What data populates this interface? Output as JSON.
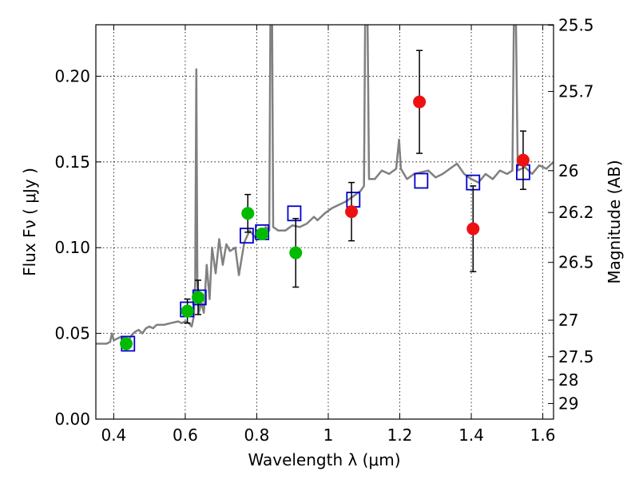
{
  "chart_data": {
    "type": "scatter",
    "xlabel": "Wavelength  λ (μm)",
    "ylabel": "Flux  Fν  ( μJy )",
    "y2label": "Magnitude (AB)",
    "xlim": [
      0.35,
      1.63
    ],
    "ylim": [
      0.0,
      0.23
    ],
    "grid": true,
    "x_ticks": [
      0.4,
      0.6,
      0.8,
      1.0,
      1.2,
      1.4,
      1.6
    ],
    "x_tick_labels": [
      "0.4",
      "0.6",
      "0.8",
      "1",
      "1.2",
      "1.4",
      "1.6"
    ],
    "y_ticks": [
      0.0,
      0.05,
      0.1,
      0.15,
      0.2
    ],
    "y_tick_labels": [
      "0.00",
      "0.05",
      "0.10",
      "0.15",
      "0.20"
    ],
    "y2_ticks": [
      {
        "label": "25.5",
        "flux": 0.2297
      },
      {
        "label": "25.7",
        "flux": 0.1911
      },
      {
        "label": "26",
        "flux": 0.1449
      },
      {
        "label": "26.2",
        "flux": 0.1205
      },
      {
        "label": "26.5",
        "flux": 0.0914
      },
      {
        "label": "27",
        "flux": 0.0577
      },
      {
        "label": "27.5",
        "flux": 0.0364
      },
      {
        "label": "28",
        "flux": 0.0229
      },
      {
        "label": "29",
        "flux": 0.0091
      }
    ],
    "series": [
      {
        "kind": "line",
        "color": "#808080",
        "points": [
          [
            0.35,
            0.044
          ],
          [
            0.365,
            0.044
          ],
          [
            0.38,
            0.044
          ],
          [
            0.39,
            0.045
          ],
          [
            0.395,
            0.05
          ],
          [
            0.4,
            0.046
          ],
          [
            0.41,
            0.047
          ],
          [
            0.42,
            0.048
          ],
          [
            0.435,
            0.047
          ],
          [
            0.44,
            0.045
          ],
          [
            0.45,
            0.049
          ],
          [
            0.46,
            0.051
          ],
          [
            0.47,
            0.052
          ],
          [
            0.48,
            0.05
          ],
          [
            0.49,
            0.053
          ],
          [
            0.5,
            0.054
          ],
          [
            0.51,
            0.053
          ],
          [
            0.52,
            0.055
          ],
          [
            0.54,
            0.055
          ],
          [
            0.56,
            0.056
          ],
          [
            0.58,
            0.057
          ],
          [
            0.59,
            0.056
          ],
          [
            0.6,
            0.057
          ],
          [
            0.61,
            0.056
          ],
          [
            0.618,
            0.054
          ],
          [
            0.624,
            0.06
          ],
          [
            0.628,
            0.08
          ],
          [
            0.631,
            0.204
          ],
          [
            0.634,
            0.08
          ],
          [
            0.638,
            0.062
          ],
          [
            0.645,
            0.068
          ],
          [
            0.652,
            0.062
          ],
          [
            0.66,
            0.09
          ],
          [
            0.668,
            0.07
          ],
          [
            0.675,
            0.1
          ],
          [
            0.685,
            0.085
          ],
          [
            0.695,
            0.105
          ],
          [
            0.705,
            0.09
          ],
          [
            0.715,
            0.102
          ],
          [
            0.725,
            0.098
          ],
          [
            0.74,
            0.1
          ],
          [
            0.75,
            0.084
          ],
          [
            0.765,
            0.103
          ],
          [
            0.78,
            0.11
          ],
          [
            0.795,
            0.106
          ],
          [
            0.805,
            0.109
          ],
          [
            0.815,
            0.107
          ],
          [
            0.825,
            0.112
          ],
          [
            0.835,
            0.11
          ],
          [
            0.838,
            0.23
          ],
          [
            0.843,
            0.23
          ],
          [
            0.846,
            0.112
          ],
          [
            0.86,
            0.11
          ],
          [
            0.88,
            0.11
          ],
          [
            0.9,
            0.113
          ],
          [
            0.92,
            0.112
          ],
          [
            0.94,
            0.114
          ],
          [
            0.96,
            0.118
          ],
          [
            0.97,
            0.116
          ],
          [
            0.99,
            0.12
          ],
          [
            1.01,
            0.123
          ],
          [
            1.03,
            0.125
          ],
          [
            1.05,
            0.127
          ],
          [
            1.07,
            0.13
          ],
          [
            1.09,
            0.133
          ],
          [
            1.1,
            0.136
          ],
          [
            1.103,
            0.23
          ],
          [
            1.11,
            0.23
          ],
          [
            1.114,
            0.14
          ],
          [
            1.13,
            0.14
          ],
          [
            1.15,
            0.145
          ],
          [
            1.17,
            0.143
          ],
          [
            1.19,
            0.146
          ],
          [
            1.198,
            0.163
          ],
          [
            1.203,
            0.146
          ],
          [
            1.22,
            0.14
          ],
          [
            1.24,
            0.143
          ],
          [
            1.26,
            0.144
          ],
          [
            1.28,
            0.145
          ],
          [
            1.3,
            0.141
          ],
          [
            1.32,
            0.143
          ],
          [
            1.34,
            0.146
          ],
          [
            1.36,
            0.149
          ],
          [
            1.38,
            0.143
          ],
          [
            1.4,
            0.14
          ],
          [
            1.42,
            0.138
          ],
          [
            1.44,
            0.143
          ],
          [
            1.46,
            0.14
          ],
          [
            1.48,
            0.145
          ],
          [
            1.5,
            0.143
          ],
          [
            1.515,
            0.145
          ],
          [
            1.519,
            0.23
          ],
          [
            1.525,
            0.23
          ],
          [
            1.53,
            0.145
          ],
          [
            1.55,
            0.147
          ],
          [
            1.57,
            0.143
          ],
          [
            1.59,
            0.148
          ],
          [
            1.61,
            0.146
          ],
          [
            1.63,
            0.15
          ]
        ]
      },
      {
        "kind": "square",
        "color": "#0000cc",
        "points": [
          [
            0.44,
            0.044
          ],
          [
            0.605,
            0.064
          ],
          [
            0.64,
            0.071
          ],
          [
            0.772,
            0.107
          ],
          [
            0.815,
            0.109
          ],
          [
            0.905,
            0.12
          ],
          [
            1.07,
            0.128
          ],
          [
            1.26,
            0.139
          ],
          [
            1.405,
            0.138
          ],
          [
            1.545,
            0.144
          ]
        ]
      },
      {
        "kind": "dot",
        "color": "#00bb00",
        "points": [
          {
            "x": 0.435,
            "y": 0.044,
            "err": null
          },
          {
            "x": 0.606,
            "y": 0.063,
            "err": 0.007
          },
          {
            "x": 0.636,
            "y": 0.071,
            "err": 0.01
          },
          {
            "x": 0.775,
            "y": 0.12,
            "err": 0.011
          },
          {
            "x": 0.815,
            "y": 0.108,
            "err": null
          },
          {
            "x": 0.909,
            "y": 0.097,
            "err": 0.02
          }
        ]
      },
      {
        "kind": "dot",
        "color": "#ee1111",
        "points": [
          {
            "x": 1.065,
            "y": 0.121,
            "err": 0.017
          },
          {
            "x": 1.255,
            "y": 0.185,
            "err": 0.03
          },
          {
            "x": 1.405,
            "y": 0.111,
            "err": 0.025
          },
          {
            "x": 1.545,
            "y": 0.151,
            "err": 0.017
          }
        ]
      }
    ]
  }
}
